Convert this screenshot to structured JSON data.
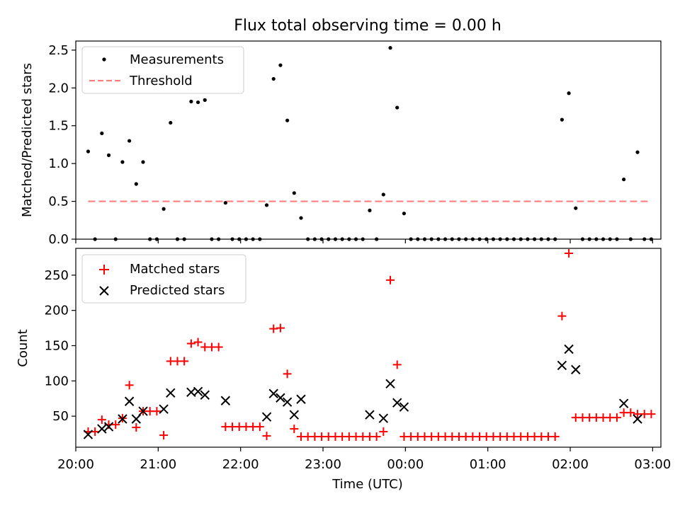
{
  "figure": {
    "title": "Flux total observing time = 0.00 h"
  },
  "chart_data": [
    {
      "type": "scatter",
      "ylabel": "Matched/Predicted stars",
      "xlabel": "",
      "ylim": [
        0,
        2.62
      ],
      "yticks": [
        0.0,
        0.5,
        1.0,
        1.5,
        2.0,
        2.5
      ],
      "ytick_labels": [
        "0.0",
        "0.5",
        "1.0",
        "1.5",
        "2.0",
        "2.5"
      ],
      "grid": false,
      "legend": "upper-left",
      "series": [
        {
          "name": "Measurements",
          "color": "#000000",
          "marker": "dot",
          "points": [
            [
              "20:09",
              1.16
            ],
            [
              "20:14",
              0.0
            ],
            [
              "20:19",
              1.4
            ],
            [
              "20:24",
              1.11
            ],
            [
              "20:29",
              0.0
            ],
            [
              "20:34",
              1.02
            ],
            [
              "20:39",
              1.3
            ],
            [
              "20:44",
              0.73
            ],
            [
              "20:49",
              1.02
            ],
            [
              "20:54",
              0.0
            ],
            [
              "20:59",
              0.0
            ],
            [
              "21:04",
              0.4
            ],
            [
              "21:09",
              1.54
            ],
            [
              "21:14",
              0.0
            ],
            [
              "21:19",
              0.0
            ],
            [
              "21:24",
              1.82
            ],
            [
              "21:29",
              1.81
            ],
            [
              "21:34",
              1.84
            ],
            [
              "21:39",
              0.0
            ],
            [
              "21:44",
              0.0
            ],
            [
              "21:49",
              0.48
            ],
            [
              "21:54",
              0.0
            ],
            [
              "21:59",
              0.0
            ],
            [
              "22:04",
              0.0
            ],
            [
              "22:09",
              0.0
            ],
            [
              "22:14",
              0.0
            ],
            [
              "22:19",
              0.45
            ],
            [
              "22:24",
              2.12
            ],
            [
              "22:29",
              2.3
            ],
            [
              "22:34",
              1.57
            ],
            [
              "22:39",
              0.61
            ],
            [
              "22:44",
              0.28
            ],
            [
              "22:49",
              0.0
            ],
            [
              "22:54",
              0.0
            ],
            [
              "22:59",
              0.0
            ],
            [
              "23:04",
              0.0
            ],
            [
              "23:09",
              0.0
            ],
            [
              "23:14",
              0.0
            ],
            [
              "23:19",
              0.0
            ],
            [
              "23:24",
              0.0
            ],
            [
              "23:29",
              0.0
            ],
            [
              "23:34",
              0.38
            ],
            [
              "23:39",
              0.0
            ],
            [
              "23:44",
              0.59
            ],
            [
              "23:49",
              2.53
            ],
            [
              "23:54",
              1.74
            ],
            [
              "23:59",
              0.34
            ],
            [
              "00:04",
              0.0
            ],
            [
              "00:09",
              0.0
            ],
            [
              "00:14",
              0.0
            ],
            [
              "00:19",
              0.0
            ],
            [
              "00:24",
              0.0
            ],
            [
              "00:29",
              0.0
            ],
            [
              "00:34",
              0.0
            ],
            [
              "00:39",
              0.0
            ],
            [
              "00:44",
              0.0
            ],
            [
              "00:49",
              0.0
            ],
            [
              "00:54",
              0.0
            ],
            [
              "00:59",
              0.0
            ],
            [
              "01:04",
              0.0
            ],
            [
              "01:09",
              0.0
            ],
            [
              "01:14",
              0.0
            ],
            [
              "01:19",
              0.0
            ],
            [
              "01:24",
              0.0
            ],
            [
              "01:29",
              0.0
            ],
            [
              "01:34",
              0.0
            ],
            [
              "01:39",
              0.0
            ],
            [
              "01:44",
              0.0
            ],
            [
              "01:49",
              0.0
            ],
            [
              "01:54",
              1.58
            ],
            [
              "01:59",
              1.93
            ],
            [
              "02:04",
              0.41
            ],
            [
              "02:09",
              0.0
            ],
            [
              "02:14",
              0.0
            ],
            [
              "02:19",
              0.0
            ],
            [
              "02:24",
              0.0
            ],
            [
              "02:29",
              0.0
            ],
            [
              "02:34",
              0.0
            ],
            [
              "02:39",
              0.79
            ],
            [
              "02:44",
              0.0
            ],
            [
              "02:49",
              1.15
            ],
            [
              "02:54",
              0.0
            ],
            [
              "02:59",
              0.0
            ]
          ]
        },
        {
          "name": "Threshold",
          "color": "#ff7f7f",
          "line_style": "dashed",
          "points": [
            [
              "20:09",
              0.5
            ],
            [
              "02:59",
              0.5
            ]
          ]
        }
      ]
    },
    {
      "type": "scatter",
      "xlabel": "Time (UTC)",
      "ylabel": "Count",
      "ylim": [
        6,
        288
      ],
      "yticks": [
        50,
        100,
        150,
        200,
        250
      ],
      "ytick_labels": [
        "50",
        "100",
        "150",
        "200",
        "250"
      ],
      "xlim": [
        "20:00",
        "03:06"
      ],
      "xticks": [
        "20:00",
        "21:00",
        "22:00",
        "23:00",
        "00:00",
        "01:00",
        "02:00",
        "03:00"
      ],
      "xtick_labels": [
        "20:00",
        "21:00",
        "22:00",
        "23:00",
        "00:00",
        "01:00",
        "02:00",
        "03:00"
      ],
      "grid": false,
      "legend": "upper-left",
      "series": [
        {
          "name": "Matched stars",
          "color": "#ff0000",
          "marker": "plus",
          "points": [
            [
              "20:09",
              28
            ],
            [
              "20:14",
              28
            ],
            [
              "20:19",
              45
            ],
            [
              "20:24",
              38
            ],
            [
              "20:29",
              38
            ],
            [
              "20:34",
              47
            ],
            [
              "20:39",
              94
            ],
            [
              "20:44",
              34
            ],
            [
              "20:49",
              57
            ],
            [
              "20:54",
              57
            ],
            [
              "20:59",
              57
            ],
            [
              "21:04",
              23
            ],
            [
              "21:09",
              128
            ],
            [
              "21:14",
              128
            ],
            [
              "21:19",
              128
            ],
            [
              "21:24",
              153
            ],
            [
              "21:29",
              155
            ],
            [
              "21:34",
              148
            ],
            [
              "21:39",
              148
            ],
            [
              "21:44",
              148
            ],
            [
              "21:49",
              35
            ],
            [
              "21:54",
              35
            ],
            [
              "21:59",
              35
            ],
            [
              "22:04",
              35
            ],
            [
              "22:09",
              35
            ],
            [
              "22:14",
              35
            ],
            [
              "22:19",
              22
            ],
            [
              "22:24",
              174
            ],
            [
              "22:29",
              175
            ],
            [
              "22:34",
              110
            ],
            [
              "22:39",
              32
            ],
            [
              "22:44",
              21
            ],
            [
              "22:49",
              21
            ],
            [
              "22:54",
              21
            ],
            [
              "22:59",
              21
            ],
            [
              "23:04",
              21
            ],
            [
              "23:09",
              21
            ],
            [
              "23:14",
              21
            ],
            [
              "23:19",
              21
            ],
            [
              "23:24",
              21
            ],
            [
              "23:29",
              21
            ],
            [
              "23:34",
              21
            ],
            [
              "23:39",
              21
            ],
            [
              "23:44",
              28
            ],
            [
              "23:49",
              243
            ],
            [
              "23:54",
              123
            ],
            [
              "23:59",
              21
            ],
            [
              "00:04",
              21
            ],
            [
              "00:09",
              21
            ],
            [
              "00:14",
              21
            ],
            [
              "00:19",
              21
            ],
            [
              "00:24",
              21
            ],
            [
              "00:29",
              21
            ],
            [
              "00:34",
              21
            ],
            [
              "00:39",
              21
            ],
            [
              "00:44",
              21
            ],
            [
              "00:49",
              21
            ],
            [
              "00:54",
              21
            ],
            [
              "00:59",
              21
            ],
            [
              "01:04",
              21
            ],
            [
              "01:09",
              21
            ],
            [
              "01:14",
              21
            ],
            [
              "01:19",
              21
            ],
            [
              "01:24",
              21
            ],
            [
              "01:29",
              21
            ],
            [
              "01:34",
              21
            ],
            [
              "01:39",
              21
            ],
            [
              "01:44",
              21
            ],
            [
              "01:49",
              21
            ],
            [
              "01:54",
              192
            ],
            [
              "01:59",
              281
            ],
            [
              "02:04",
              48
            ],
            [
              "02:09",
              48
            ],
            [
              "02:14",
              48
            ],
            [
              "02:19",
              48
            ],
            [
              "02:24",
              48
            ],
            [
              "02:29",
              48
            ],
            [
              "02:34",
              48
            ],
            [
              "02:39",
              55
            ],
            [
              "02:44",
              55
            ],
            [
              "02:49",
              53
            ],
            [
              "02:54",
              53
            ],
            [
              "02:59",
              53
            ]
          ]
        },
        {
          "name": "Predicted stars",
          "color": "#000000",
          "marker": "x",
          "points": [
            [
              "20:09",
              24
            ],
            [
              "20:19",
              32
            ],
            [
              "20:24",
              35
            ],
            [
              "20:34",
              46
            ],
            [
              "20:39",
              71
            ],
            [
              "20:44",
              46
            ],
            [
              "20:49",
              57
            ],
            [
              "21:04",
              60
            ],
            [
              "21:09",
              83
            ],
            [
              "21:24",
              84
            ],
            [
              "21:29",
              85
            ],
            [
              "21:34",
              80
            ],
            [
              "21:49",
              72
            ],
            [
              "22:19",
              49
            ],
            [
              "22:24",
              82
            ],
            [
              "22:29",
              76
            ],
            [
              "22:34",
              70
            ],
            [
              "22:39",
              52
            ],
            [
              "22:44",
              74
            ],
            [
              "23:34",
              52
            ],
            [
              "23:44",
              47
            ],
            [
              "23:49",
              96
            ],
            [
              "23:54",
              69
            ],
            [
              "23:59",
              63
            ],
            [
              "01:54",
              122
            ],
            [
              "01:59",
              145
            ],
            [
              "02:04",
              116
            ],
            [
              "02:39",
              68
            ],
            [
              "02:49",
              46
            ]
          ]
        }
      ]
    }
  ]
}
